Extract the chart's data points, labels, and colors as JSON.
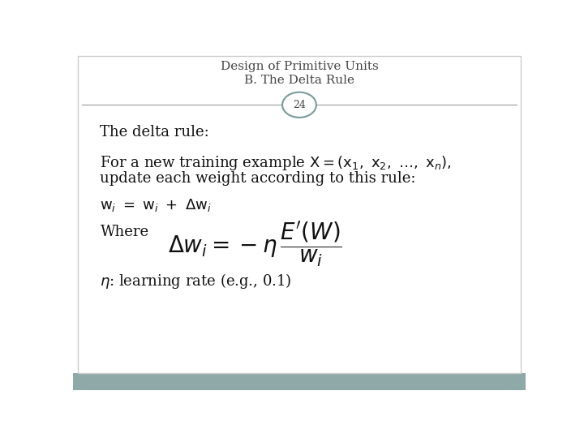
{
  "title_line1": "Design of Primitive Units",
  "title_line2": "B. The Delta Rule",
  "slide_number": "24",
  "bg_color": "#ffffff",
  "footer_color": "#8fa8a8",
  "title_color": "#444444",
  "separator_color": "#999999",
  "circle_edge_color": "#7a9a9a",
  "circle_fill_color": "#ffffff",
  "body_color": "#111111",
  "title_fontsize": 11,
  "body_fontsize": 13,
  "formula_fontsize": 20
}
